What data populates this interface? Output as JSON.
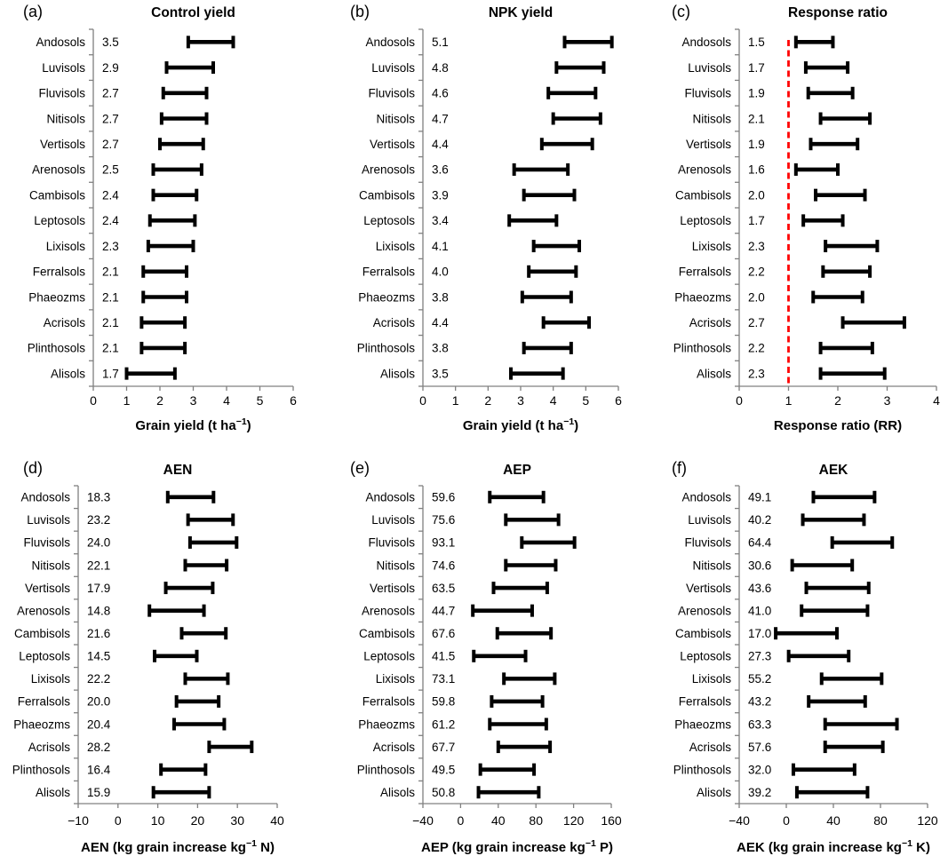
{
  "figure": {
    "colors": {
      "background": "#ffffff",
      "bar": "#000000",
      "axis": "#808080",
      "text": "#000000",
      "reference_line": "#ff0000"
    }
  },
  "chart_data": [
    {
      "id": "a",
      "type": "bar",
      "subtype": "horizontal-interval",
      "letter": "(a)",
      "title": "Control yield",
      "xlabel": {
        "pre": "Grain yield (t ha",
        "sup": "−1",
        "post": ")"
      },
      "xlim": [
        0,
        6
      ],
      "xtick_values": [
        0,
        1,
        2,
        3,
        4,
        5,
        6
      ],
      "xtick_labels": [
        "0",
        "1",
        "2",
        "3",
        "4",
        "5",
        "6"
      ],
      "refline": null,
      "grid": false,
      "legend": false,
      "categories": [
        "Andosols",
        "Luvisols",
        "Fluvisols",
        "Nitisols",
        "Vertisols",
        "Arenosols",
        "Cambisols",
        "Leptosols",
        "Lixisols",
        "Ferralsols",
        "Phaeozms",
        "Acrisols",
        "Plinthosols",
        "Alisols"
      ],
      "values": [
        "3.5",
        "2.9",
        "2.7",
        "2.7",
        "2.7",
        "2.5",
        "2.4",
        "2.4",
        "2.3",
        "2.1",
        "2.1",
        "2.1",
        "2.1",
        "1.7"
      ],
      "ranges": [
        [
          2.85,
          4.2
        ],
        [
          2.2,
          3.6
        ],
        [
          2.1,
          3.4
        ],
        [
          2.05,
          3.4
        ],
        [
          2.0,
          3.3
        ],
        [
          1.8,
          3.25
        ],
        [
          1.8,
          3.1
        ],
        [
          1.7,
          3.05
        ],
        [
          1.65,
          3.0
        ],
        [
          1.5,
          2.8
        ],
        [
          1.5,
          2.8
        ],
        [
          1.45,
          2.75
        ],
        [
          1.45,
          2.75
        ],
        [
          1.0,
          2.45
        ]
      ]
    },
    {
      "id": "b",
      "type": "bar",
      "subtype": "horizontal-interval",
      "letter": "(b)",
      "title": "NPK yield",
      "xlabel": {
        "pre": "Grain yield (t ha",
        "sup": "−1",
        "post": ")"
      },
      "xlim": [
        0,
        6
      ],
      "xtick_values": [
        0,
        1,
        2,
        3,
        4,
        5,
        6
      ],
      "xtick_labels": [
        "0",
        "1",
        "2",
        "3",
        "4",
        "5",
        "6"
      ],
      "refline": null,
      "grid": false,
      "legend": false,
      "categories": [
        "Andosols",
        "Luvisols",
        "Fluvisols",
        "Nitisols",
        "Vertisols",
        "Arenosols",
        "Cambisols",
        "Leptosols",
        "Lixisols",
        "Ferralsols",
        "Phaeozms",
        "Acrisols",
        "Plinthosols",
        "Alisols"
      ],
      "values": [
        "5.1",
        "4.8",
        "4.6",
        "4.7",
        "4.4",
        "3.6",
        "3.9",
        "3.4",
        "4.1",
        "4.0",
        "3.8",
        "4.4",
        "3.8",
        "3.5"
      ],
      "ranges": [
        [
          4.35,
          5.8
        ],
        [
          4.1,
          5.55
        ],
        [
          3.85,
          5.3
        ],
        [
          4.0,
          5.45
        ],
        [
          3.65,
          5.2
        ],
        [
          2.8,
          4.45
        ],
        [
          3.1,
          4.65
        ],
        [
          2.65,
          4.1
        ],
        [
          3.4,
          4.8
        ],
        [
          3.25,
          4.7
        ],
        [
          3.05,
          4.55
        ],
        [
          3.7,
          5.1
        ],
        [
          3.1,
          4.55
        ],
        [
          2.7,
          4.3
        ]
      ]
    },
    {
      "id": "c",
      "type": "bar",
      "subtype": "horizontal-interval",
      "letter": "(c)",
      "title": "Response ratio",
      "xlabel": {
        "pre": "Response ratio (RR)",
        "sup": "",
        "post": ""
      },
      "xlim": [
        0,
        4
      ],
      "xtick_values": [
        0,
        1,
        2,
        3,
        4
      ],
      "xtick_labels": [
        "0",
        "1",
        "2",
        "3",
        "4"
      ],
      "refline": 1,
      "grid": false,
      "legend": false,
      "categories": [
        "Andosols",
        "Luvisols",
        "Fluvisols",
        "Nitisols",
        "Vertisols",
        "Arenosols",
        "Cambisols",
        "Leptosols",
        "Lixisols",
        "Ferralsols",
        "Phaeozms",
        "Acrisols",
        "Plinthosols",
        "Alisols"
      ],
      "values": [
        "1.5",
        "1.7",
        "1.9",
        "2.1",
        "1.9",
        "1.6",
        "2.0",
        "1.7",
        "2.3",
        "2.2",
        "2.0",
        "2.7",
        "2.2",
        "2.3"
      ],
      "ranges": [
        [
          1.15,
          1.9
        ],
        [
          1.35,
          2.2
        ],
        [
          1.4,
          2.3
        ],
        [
          1.65,
          2.65
        ],
        [
          1.45,
          2.4
        ],
        [
          1.15,
          2.0
        ],
        [
          1.55,
          2.55
        ],
        [
          1.3,
          2.1
        ],
        [
          1.75,
          2.8
        ],
        [
          1.7,
          2.65
        ],
        [
          1.5,
          2.5
        ],
        [
          2.1,
          3.35
        ],
        [
          1.65,
          2.7
        ],
        [
          1.65,
          2.95
        ]
      ]
    },
    {
      "id": "d",
      "type": "bar",
      "subtype": "horizontal-interval",
      "letter": "(d)",
      "title": "AEN",
      "xlabel": {
        "pre": "AEN (kg grain increase kg",
        "sup": "−1",
        "post": " N)"
      },
      "xlim": [
        -10,
        40
      ],
      "xtick_values": [
        -10,
        0,
        10,
        20,
        30,
        40
      ],
      "xtick_labels": [
        "−10",
        "0",
        "10",
        "20",
        "30",
        "40"
      ],
      "refline": null,
      "grid": false,
      "legend": false,
      "categories": [
        "Andosols",
        "Luvisols",
        "Fluvisols",
        "Nitisols",
        "Vertisols",
        "Arenosols",
        "Cambisols",
        "Leptosols",
        "Lixisols",
        "Ferralsols",
        "Phaeozms",
        "Acrisols",
        "Plinthosols",
        "Alisols"
      ],
      "values": [
        "18.3",
        "23.2",
        "24.0",
        "22.1",
        "17.9",
        "14.8",
        "21.6",
        "14.5",
        "22.2",
        "20.0",
        "20.4",
        "28.2",
        "16.4",
        "15.9"
      ],
      "ranges": [
        [
          12.5,
          24.0
        ],
        [
          17.6,
          28.9
        ],
        [
          18.1,
          29.8
        ],
        [
          16.9,
          27.3
        ],
        [
          12.0,
          23.8
        ],
        [
          7.9,
          21.6
        ],
        [
          16.0,
          27.1
        ],
        [
          9.2,
          19.8
        ],
        [
          16.9,
          27.6
        ],
        [
          14.7,
          25.3
        ],
        [
          14.1,
          26.7
        ],
        [
          22.9,
          33.6
        ],
        [
          10.8,
          22.0
        ],
        [
          8.9,
          22.9
        ]
      ]
    },
    {
      "id": "e",
      "type": "bar",
      "subtype": "horizontal-interval",
      "letter": "(e)",
      "title": "AEP",
      "xlabel": {
        "pre": "AEP (kg grain increase kg",
        "sup": "−1",
        "post": " P)"
      },
      "xlim": [
        -40,
        160
      ],
      "xtick_values": [
        -40,
        0,
        40,
        80,
        120,
        160
      ],
      "xtick_labels": [
        "−40",
        "0",
        "40",
        "80",
        "120",
        "160"
      ],
      "refline": null,
      "grid": false,
      "legend": false,
      "categories": [
        "Andosols",
        "Luvisols",
        "Fluvisols",
        "Nitisols",
        "Vertisols",
        "Arenosols",
        "Cambisols",
        "Leptosols",
        "Lixisols",
        "Ferralsols",
        "Phaeozms",
        "Acrisols",
        "Plinthosols",
        "Alisols"
      ],
      "values": [
        "59.6",
        "75.6",
        "93.1",
        "74.6",
        "63.5",
        "44.7",
        "67.6",
        "41.5",
        "73.1",
        "59.8",
        "61.2",
        "67.7",
        "49.5",
        "50.8"
      ],
      "ranges": [
        [
          31,
          88
        ],
        [
          48,
          104
        ],
        [
          65,
          121
        ],
        [
          48,
          101
        ],
        [
          35,
          92
        ],
        [
          13,
          76
        ],
        [
          39,
          96
        ],
        [
          14,
          69
        ],
        [
          46,
          100
        ],
        [
          33,
          87
        ],
        [
          31,
          91
        ],
        [
          40,
          95
        ],
        [
          21,
          78
        ],
        [
          19,
          83
        ]
      ]
    },
    {
      "id": "f",
      "type": "bar",
      "subtype": "horizontal-interval",
      "letter": "(f)",
      "title": "AEK",
      "xlabel": {
        "pre": "AEK (kg grain increase kg",
        "sup": "−1",
        "post": " K)"
      },
      "xlim": [
        -40,
        120
      ],
      "xtick_values": [
        -40,
        0,
        40,
        80,
        120
      ],
      "xtick_labels": [
        "−40",
        "0",
        "40",
        "80",
        "120"
      ],
      "refline": null,
      "grid": false,
      "legend": false,
      "categories": [
        "Andosols",
        "Luvisols",
        "Fluvisols",
        "Nitisols",
        "Vertisols",
        "Arenosols",
        "Cambisols",
        "Leptosols",
        "Lixisols",
        "Ferralsols",
        "Phaeozms",
        "Acrisols",
        "Plinthosols",
        "Alisols"
      ],
      "values": [
        "49.1",
        "40.2",
        "64.4",
        "30.6",
        "43.6",
        "41.0",
        "17.0",
        "27.3",
        "55.2",
        "43.2",
        "63.3",
        "57.6",
        "32.0",
        "39.2"
      ],
      "ranges": [
        [
          23,
          75
        ],
        [
          14,
          66
        ],
        [
          39,
          90
        ],
        [
          5,
          56
        ],
        [
          17,
          70
        ],
        [
          13,
          69
        ],
        [
          -9,
          43
        ],
        [
          2,
          53
        ],
        [
          30,
          81
        ],
        [
          19,
          67
        ],
        [
          33,
          94
        ],
        [
          33,
          82
        ],
        [
          6,
          58
        ],
        [
          9,
          69
        ]
      ]
    }
  ]
}
